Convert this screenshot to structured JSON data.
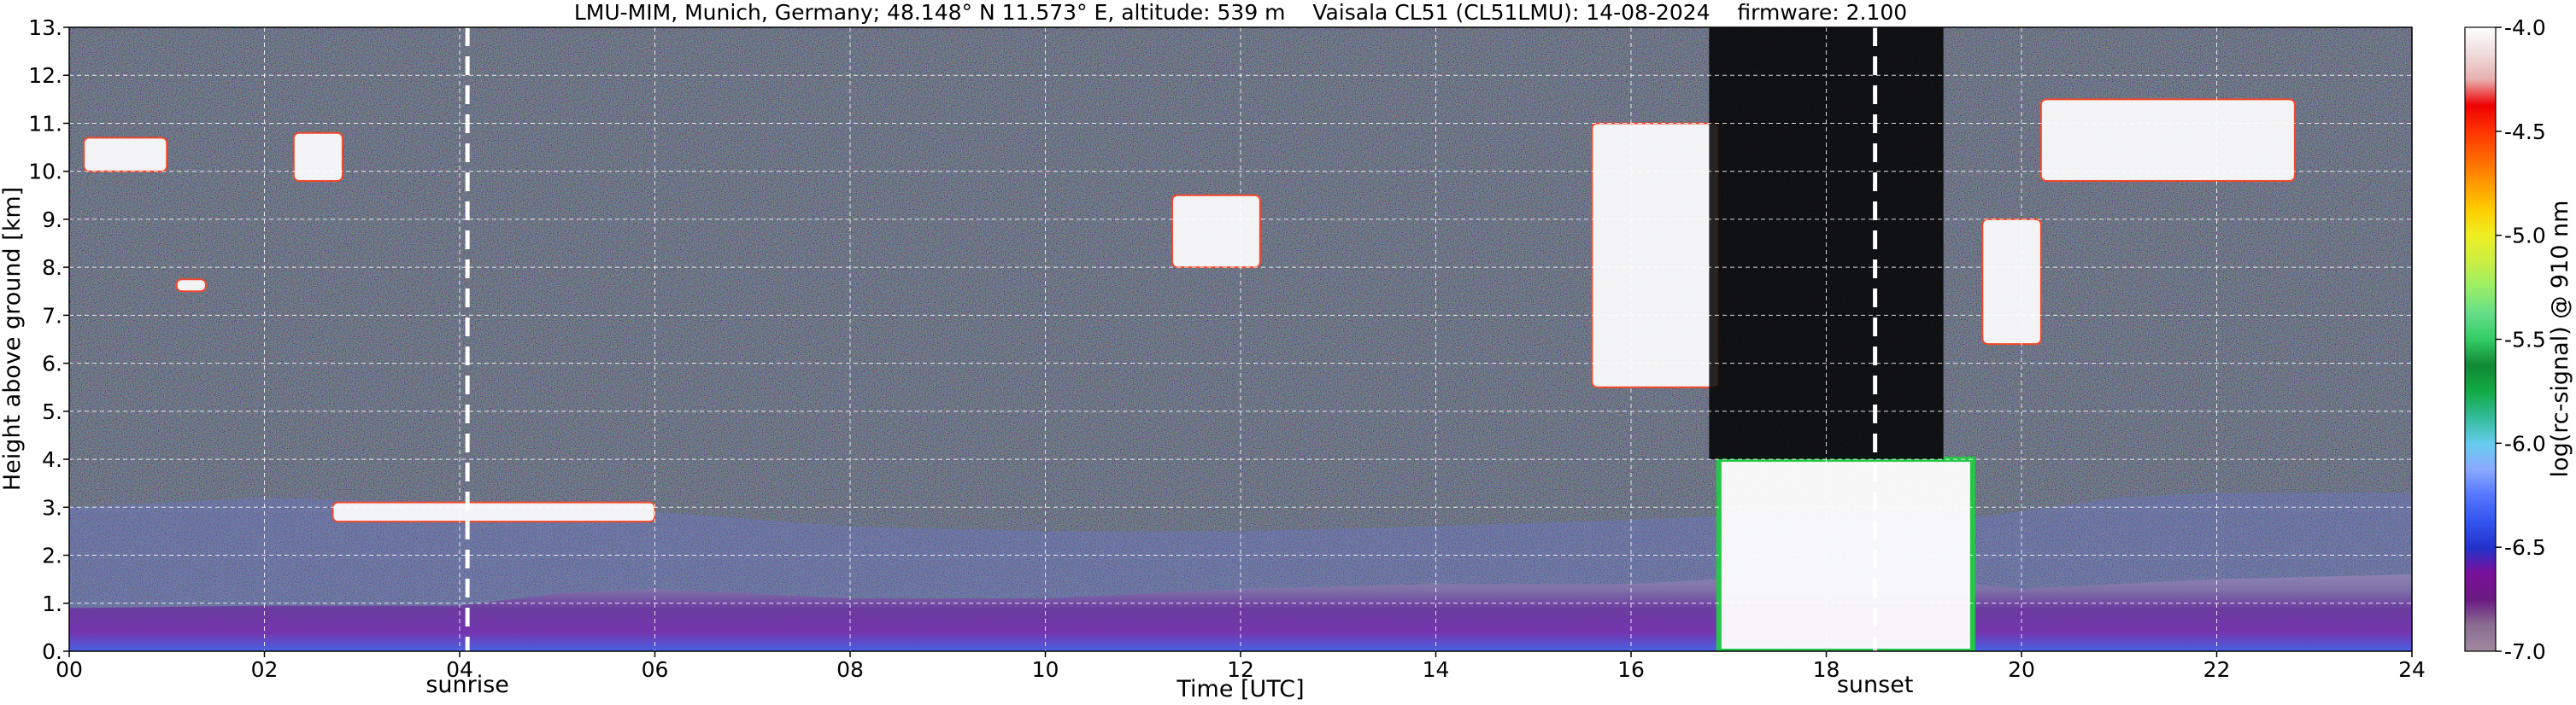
{
  "chart_data": {
    "type": "heatmap",
    "title": "LMU-MIM, Munich, Germany; 48.148° N 11.573° E, altitude: 539 m    Vaisala CL51 (CL51LMU): 14-08-2024    firmware: 2.100",
    "xlabel": "Time [UTC]",
    "ylabel": "Height above ground [km]",
    "colorbar_label": "log(rc-signal) @ 910 nm",
    "xlim": [
      0,
      24
    ],
    "ylim": [
      0,
      13
    ],
    "clim": [
      -7.0,
      -4.0
    ],
    "grid": true,
    "x_ticks": [
      0,
      2,
      4,
      6,
      8,
      10,
      12,
      14,
      16,
      18,
      20,
      22,
      24
    ],
    "x_tick_labels": [
      "00",
      "02",
      "04",
      "06",
      "08",
      "10",
      "12",
      "14",
      "16",
      "18",
      "20",
      "22",
      "24"
    ],
    "y_ticks": [
      0,
      1,
      2,
      3,
      4,
      5,
      6,
      7,
      8,
      9,
      10,
      11,
      12,
      13
    ],
    "y_tick_labels": [
      "0.",
      "1.",
      "2.",
      "3.",
      "4.",
      "5.",
      "6.",
      "7.",
      "8.",
      "9.",
      "10.",
      "11.",
      "12.",
      "13."
    ],
    "colorbar_ticks": [
      -7.0,
      -6.5,
      -6.0,
      -5.5,
      -5.0,
      -4.5,
      -4.0
    ],
    "colorbar_tick_labels": [
      "-7.0",
      "-6.5",
      "-6.0",
      "-5.5",
      "-5.0",
      "-4.5",
      "-4.0"
    ],
    "colormap": [
      "#a08aa0",
      "#8a6d92",
      "#6a1a82",
      "#7a0f9a",
      "#2233cc",
      "#3355ee",
      "#5577ff",
      "#8aaaff",
      "#66ccee",
      "#33bb99",
      "#11aa44",
      "#118833",
      "#33cc66",
      "#66dd88",
      "#99ee66",
      "#ccee44",
      "#eeee22",
      "#ffcc00",
      "#ff9900",
      "#ff6600",
      "#ff3300",
      "#ee0000",
      "#e8b0b0",
      "#f0dcdc",
      "#ffffff"
    ],
    "annotations": [
      {
        "label": "sunrise",
        "x": 4.08
      },
      {
        "label": "sunset",
        "x": 18.5
      }
    ],
    "features": [
      {
        "kind": "boundary_layer",
        "x": [
          0,
          2,
          4,
          5,
          6,
          8,
          10,
          12,
          14,
          16,
          16.9,
          19.5,
          20,
          22,
          24
        ],
        "top": [
          0.9,
          0.95,
          0.95,
          1.2,
          1.3,
          1.1,
          1.1,
          1.3,
          1.4,
          1.4,
          1.5,
          1.4,
          1.3,
          1.5,
          1.6
        ]
      },
      {
        "kind": "residual_layer",
        "x": [
          0,
          2,
          4,
          6,
          8,
          10,
          12,
          14,
          16.8,
          19.6,
          21,
          22,
          24
        ],
        "top": [
          3.0,
          3.2,
          3.1,
          2.9,
          2.6,
          2.5,
          2.5,
          2.6,
          2.8,
          2.8,
          3.2,
          3.3,
          3.3
        ]
      },
      {
        "kind": "cloud",
        "x": [
          0.15,
          1.0
        ],
        "y": [
          10.0,
          10.7
        ]
      },
      {
        "kind": "cloud",
        "x": [
          2.3,
          2.8
        ],
        "y": [
          9.8,
          10.8
        ]
      },
      {
        "kind": "cloud",
        "x": [
          1.1,
          1.4
        ],
        "y": [
          7.5,
          7.75
        ]
      },
      {
        "kind": "cloud",
        "x": [
          2.7,
          6.0
        ],
        "y": [
          2.7,
          3.1
        ]
      },
      {
        "kind": "cloud",
        "x": [
          11.3,
          12.2
        ],
        "y": [
          8.0,
          9.5
        ]
      },
      {
        "kind": "cloud",
        "x": [
          15.6,
          16.9
        ],
        "y": [
          5.5,
          11.0
        ]
      },
      {
        "kind": "cloud",
        "x": [
          19.6,
          20.2
        ],
        "y": [
          6.4,
          9.0
        ]
      },
      {
        "kind": "cloud",
        "x": [
          20.2,
          22.8
        ],
        "y": [
          9.8,
          11.5
        ]
      },
      {
        "kind": "rain_shaft",
        "x": [
          16.9,
          19.5
        ],
        "y": [
          0.0,
          4.0
        ]
      },
      {
        "kind": "signal_dropout",
        "x": [
          16.8,
          19.2
        ],
        "y": [
          4.0,
          13.0
        ]
      }
    ]
  }
}
